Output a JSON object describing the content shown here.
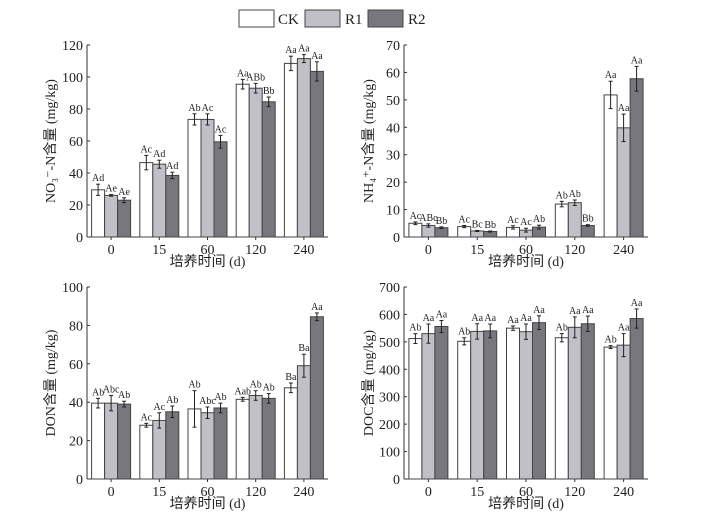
{
  "legend": [
    {
      "name": "CK",
      "color": "#ffffff"
    },
    {
      "name": "R1",
      "color": "#c0c0c6"
    },
    {
      "name": "R2",
      "color": "#77777d"
    }
  ],
  "chart_data": [
    {
      "type": "bar",
      "ylabel": "NO₃⁻-N含量 (mg/kg)",
      "xlabel": "培养时间 (d)",
      "categories": [
        "0",
        "15",
        "60",
        "120",
        "240"
      ],
      "ylim": [
        0,
        120
      ],
      "ystep": 20,
      "series": [
        {
          "name": "CK",
          "values": [
            29.5,
            46.5,
            73.5,
            95.5,
            108.5
          ],
          "errors": [
            3.5,
            4.5,
            3.5,
            3,
            4.5
          ],
          "letters": [
            "Ad",
            "Ac",
            "Ab",
            "Aa",
            "Aa"
          ]
        },
        {
          "name": "R1",
          "values": [
            26,
            45.5,
            73.5,
            93,
            111.5
          ],
          "errors": [
            0.5,
            2.5,
            3.5,
            3,
            2.5
          ],
          "letters": [
            "Ae",
            "Ad",
            "Ac",
            "ABb",
            "Aa"
          ]
        },
        {
          "name": "R2",
          "values": [
            23,
            38.5,
            59.5,
            84.5,
            103.5
          ],
          "errors": [
            1.5,
            2,
            4,
            3,
            6
          ],
          "letters": [
            "Ae",
            "Ad",
            "Ac",
            "Bb",
            "Aa"
          ]
        }
      ]
    },
    {
      "type": "bar",
      "ylabel": "NH₄⁺-N含量 (mg/kg)",
      "xlabel": "培养时间 (d)",
      "categories": [
        "0",
        "15",
        "60",
        "120",
        "240"
      ],
      "ylim": [
        0,
        70
      ],
      "ystep": 10,
      "series": [
        {
          "name": "CK",
          "values": [
            5,
            3.8,
            3.5,
            12,
            51.8
          ],
          "errors": [
            0.5,
            0.4,
            0.6,
            1,
            5
          ],
          "letters": [
            "Ac",
            "Ac",
            "Ac",
            "Ab",
            "Aa"
          ]
        },
        {
          "name": "R1",
          "values": [
            4.2,
            2.2,
            2.5,
            12.5,
            39.8
          ],
          "errors": [
            0.6,
            0.2,
            0.7,
            1,
            5
          ],
          "letters": [
            "ABc",
            "Bc",
            "Ac",
            "Ab",
            "Aa"
          ]
        },
        {
          "name": "R2",
          "values": [
            3.4,
            2,
            3.6,
            4.2,
            57.7
          ],
          "errors": [
            0.3,
            0.2,
            0.7,
            0.3,
            4.5
          ],
          "letters": [
            "Bb",
            "Bb",
            "Ab",
            "Bb",
            "Aa"
          ]
        }
      ]
    },
    {
      "type": "bar",
      "ylabel": "DON含量 (mg/kg)",
      "xlabel": "培养时间 (d)",
      "categories": [
        "0",
        "15",
        "60",
        "120",
        "240"
      ],
      "ylim": [
        0,
        100
      ],
      "ystep": 20,
      "series": [
        {
          "name": "CK",
          "values": [
            39.5,
            28,
            36.5,
            41.5,
            47.5
          ],
          "errors": [
            2.5,
            1,
            9.5,
            1,
            2.5
          ],
          "letters": [
            "Ab",
            "Ac",
            "Ab",
            "Aab",
            "Ba"
          ]
        },
        {
          "name": "R1",
          "values": [
            39.5,
            30.5,
            34.5,
            43.5,
            59
          ],
          "errors": [
            4,
            4,
            3,
            2.5,
            6
          ],
          "letters": [
            "Abc",
            "Ac",
            "Abc",
            "Ab",
            "Ba"
          ]
        },
        {
          "name": "R2",
          "values": [
            39,
            35,
            37,
            42,
            84.5
          ],
          "errors": [
            1.5,
            3,
            2.5,
            2.5,
            2
          ],
          "letters": [
            "Ab",
            "Ab",
            "Ab",
            "Ab",
            "Aa"
          ]
        }
      ]
    },
    {
      "type": "bar",
      "ylabel": "DOC含量 (mg/kg)",
      "xlabel": "培养时间 (d)",
      "categories": [
        "0",
        "15",
        "60",
        "120",
        "240"
      ],
      "ylim": [
        0,
        700
      ],
      "ystep": 100,
      "series": [
        {
          "name": "CK",
          "values": [
            512,
            502,
            550,
            515,
            481
          ],
          "errors": [
            18,
            13,
            8,
            15,
            5
          ],
          "letters": [
            "Ab",
            "Ab",
            "Aa",
            "Ab",
            "Ab"
          ]
        },
        {
          "name": "R1",
          "values": [
            530,
            538,
            537,
            553,
            488
          ],
          "errors": [
            35,
            28,
            28,
            38,
            42
          ],
          "letters": [
            "Aa",
            "Aa",
            "Aa",
            "Aa",
            "Aa"
          ]
        },
        {
          "name": "R2",
          "values": [
            556,
            540,
            570,
            566,
            585
          ],
          "errors": [
            22,
            25,
            25,
            28,
            35
          ],
          "letters": [
            "Aa",
            "Aa",
            "Aa",
            "Aa",
            "Aa"
          ]
        }
      ]
    }
  ]
}
